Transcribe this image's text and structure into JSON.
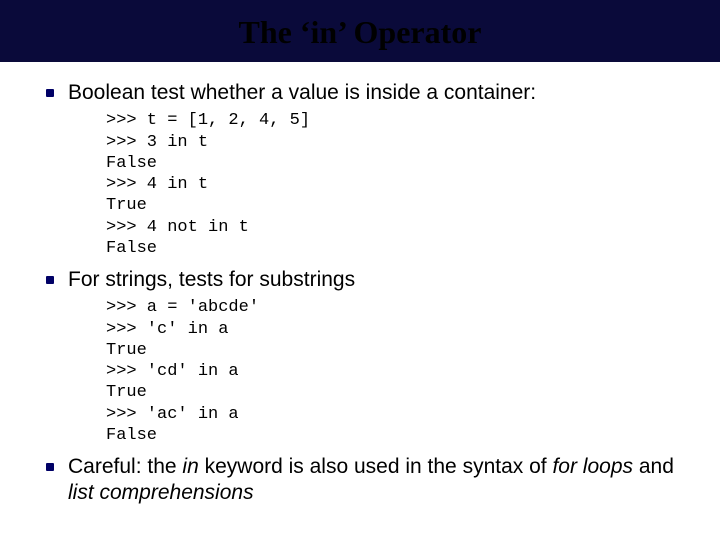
{
  "colors": {
    "title_band_bg": "#0a0a3a",
    "title_text_color": "#000000",
    "bullet_color": "#000066",
    "body_text_color": "#000000",
    "background": "#ffffff"
  },
  "typography": {
    "title_font": "Times New Roman",
    "title_fontsize": 32,
    "title_weight": "bold",
    "body_font": "Arial",
    "body_fontsize": 21,
    "code_font": "Courier New",
    "code_fontsize": 17
  },
  "title": "The ‘in’ Operator",
  "bullets": [
    {
      "text": "Boolean test whether a value is inside a container:",
      "code": ">>> t = [1, 2, 4, 5]\n>>> 3 in t\nFalse\n>>> 4 in t\nTrue\n>>> 4 not in t\nFalse"
    },
    {
      "text": "For strings, tests for substrings",
      "code": ">>> a = 'abcde'\n>>> 'c' in a\nTrue\n>>> 'cd' in a\nTrue\n>>> 'ac' in a\nFalse"
    },
    {
      "prefix": "Careful: the ",
      "italic1": "in",
      "mid1": " keyword is also used in the syntax of ",
      "italic2": "for loops",
      "mid2": " and ",
      "italic3": "list comprehensions"
    }
  ]
}
